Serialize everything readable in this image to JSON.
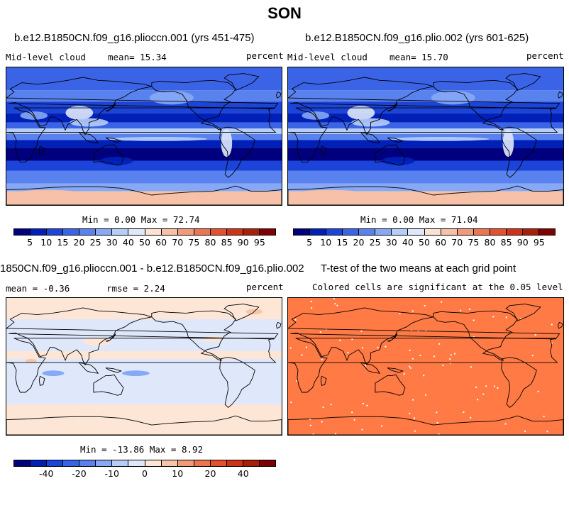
{
  "title": "SON",
  "panels": [
    {
      "title": "b.e12.B1850CN.f09_g16.plioccn.001 (yrs 451-475)",
      "left_label": "Mid-level cloud",
      "mean_label": "mean=  15.34",
      "units": "percent",
      "minmax": "Min =   0.00 Max =  72.74"
    },
    {
      "title": "b.e12.B1850CN.f09_g16.plio.002 (yrs 601-625)",
      "left_label": "Mid-level cloud",
      "mean_label": "mean=  15.70",
      "units": "percent",
      "minmax": "Min =   0.00 Max =  71.04"
    },
    {
      "title": "1850CN.f09_g16.plioccn.001 - b.e12.B1850CN.f09_g16.plio.002",
      "mean_label": "mean =  -0.36",
      "rmse_label": "rmse =   2.24",
      "units": "percent",
      "minmax": "Min = -13.86 Max =   8.92"
    },
    {
      "title": "T-test of the two means at each grid point",
      "subtitle": "Colored cells are significant at the 0.05 level"
    }
  ],
  "chart_data": [
    {
      "type": "heatmap",
      "title": "b.e12.B1850CN.f09_g16.plioccn.001 (yrs 451-475)",
      "variable": "Mid-level cloud",
      "units": "percent",
      "mean": 15.34,
      "min": 0.0,
      "max": 72.74,
      "colorbar_levels": [
        5,
        10,
        15,
        20,
        25,
        30,
        40,
        50,
        60,
        70,
        75,
        80,
        85,
        90,
        95
      ]
    },
    {
      "type": "heatmap",
      "title": "b.e12.B1850CN.f09_g16.plio.002 (yrs 601-625)",
      "variable": "Mid-level cloud",
      "units": "percent",
      "mean": 15.7,
      "min": 0.0,
      "max": 71.04,
      "colorbar_levels": [
        5,
        10,
        15,
        20,
        25,
        30,
        40,
        50,
        60,
        70,
        75,
        80,
        85,
        90,
        95
      ]
    },
    {
      "type": "heatmap",
      "title": "1850CN.f09_g16.plioccn.001 - b.e12.B1850CN.f09_g16.plio.002",
      "units": "percent",
      "mean": -0.36,
      "rmse": 2.24,
      "min": -13.86,
      "max": 8.92,
      "colorbar_ticks": [
        -40,
        -20,
        -10,
        0,
        10,
        20,
        40
      ]
    },
    {
      "type": "heatmap",
      "title": "T-test of the two means at each grid point",
      "note": "Colored cells are significant at the 0.05 level"
    }
  ],
  "colors": {
    "abs_scale": [
      "#00007f",
      "#0020b8",
      "#1c44d8",
      "#3a63e6",
      "#5a82ee",
      "#86a8f5",
      "#b6cdf8",
      "#dfe8fb",
      "#fbe2d2",
      "#f6c1a6",
      "#f19b7b",
      "#ec7552",
      "#e3512f",
      "#cc3317",
      "#a81f0a",
      "#7f0000"
    ],
    "diff_scale": [
      "#00007f",
      "#0020b8",
      "#1c44d8",
      "#3a63e6",
      "#5a82ee",
      "#86a8f5",
      "#b6cdf8",
      "#dfe8fb",
      "#fde6d6",
      "#f7c4aa",
      "#f19b7b",
      "#ec7552",
      "#e3512f",
      "#cc3317",
      "#a81f0a",
      "#7f0000"
    ],
    "ttest": "#ff7a45"
  }
}
